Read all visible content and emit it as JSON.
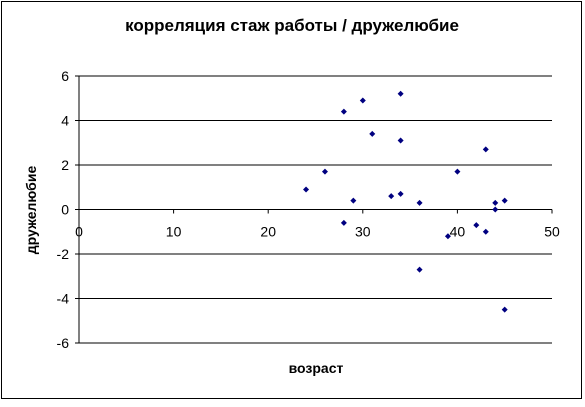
{
  "chart_data": {
    "type": "scatter",
    "title": "корреляция  стаж работы  / дружелюбие",
    "x_label": "возраст",
    "y_label": "дружелюбие",
    "series": [
      {
        "color": "#000080",
        "x": [
          24,
          26,
          28,
          28,
          29,
          30,
          31,
          33,
          34,
          34,
          34,
          36,
          36,
          39,
          40,
          42,
          43,
          43,
          44,
          44,
          45,
          45
        ],
        "values": [
          0.9,
          1.7,
          4.4,
          -0.6,
          0.4,
          4.9,
          3.4,
          0.6,
          5.2,
          3.1,
          0.7,
          0.3,
          -2.7,
          -1.2,
          1.7,
          -0.7,
          -1.0,
          2.7,
          0.3,
          0,
          0.4,
          -4.5
        ]
      }
    ],
    "xlim": [
      0,
      50
    ],
    "xticks": [
      0,
      10,
      20,
      30,
      40,
      50
    ],
    "ylim": [
      -6,
      6
    ],
    "yticks": [
      -6,
      -4,
      -2,
      0,
      2,
      4,
      6
    ],
    "grid": true
  }
}
